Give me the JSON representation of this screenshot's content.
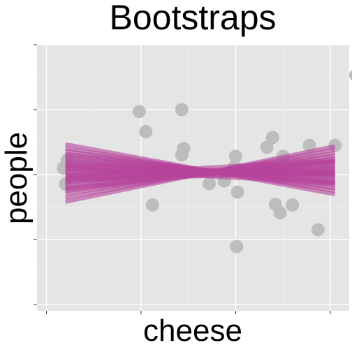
{
  "chart_data": {
    "type": "scatter",
    "title": "Bootstraps",
    "xlabel": "cheese",
    "ylabel": "people",
    "xlim": [
      -1.1,
      2.2
    ],
    "ylim": [
      -2.1,
      2.0
    ],
    "xticks": [
      -1.0,
      0.0,
      1.0,
      2.0
    ],
    "yticks": [
      -2.0,
      -1.0,
      0.0,
      1.0,
      2.0
    ],
    "tick_labels_visible": false,
    "grid": true,
    "legend": "none",
    "colors": {
      "panel_background": "#e5e5e5",
      "grid_major": "#ffffff",
      "grid_minor": "#f1f1f1",
      "points": "#bdbdbd",
      "bootstrap_lines": "#b5459b"
    },
    "points": [
      {
        "x": -0.8,
        "y": -0.15
      },
      {
        "x": -0.82,
        "y": 0.1
      },
      {
        "x": -0.78,
        "y": 0.22
      },
      {
        "x": -0.02,
        "y": 0.97
      },
      {
        "x": 0.05,
        "y": 0.66
      },
      {
        "x": 0.43,
        "y": 1.0
      },
      {
        "x": 0.45,
        "y": 0.4
      },
      {
        "x": 0.43,
        "y": 0.3
      },
      {
        "x": 0.12,
        "y": -0.47
      },
      {
        "x": 0.72,
        "y": -0.14
      },
      {
        "x": 0.88,
        "y": -0.1
      },
      {
        "x": 0.99,
        "y": 0.12
      },
      {
        "x": 1.0,
        "y": 0.28
      },
      {
        "x": 1.02,
        "y": -0.27
      },
      {
        "x": 1.01,
        "y": -1.11
      },
      {
        "x": 1.33,
        "y": 0.42
      },
      {
        "x": 1.39,
        "y": 0.57
      },
      {
        "x": 1.42,
        "y": -0.46
      },
      {
        "x": 1.47,
        "y": -0.59
      },
      {
        "x": 1.5,
        "y": 0.28
      },
      {
        "x": 1.6,
        "y": -0.47
      },
      {
        "x": 1.78,
        "y": 0.45
      },
      {
        "x": 1.87,
        "y": -0.85
      },
      {
        "x": 1.95,
        "y": 0.05
      },
      {
        "x": 2.05,
        "y": 0.45
      },
      {
        "x": 2.27,
        "y": 1.53
      }
    ],
    "bootstrap_fits": [
      {
        "slope": 0.3,
        "intercept": -0.18
      },
      {
        "slope": 0.26,
        "intercept": -0.15
      },
      {
        "slope": 0.22,
        "intercept": -0.12
      },
      {
        "slope": 0.19,
        "intercept": -0.1
      },
      {
        "slope": 0.16,
        "intercept": -0.08
      },
      {
        "slope": 0.13,
        "intercept": -0.06
      },
      {
        "slope": 0.11,
        "intercept": -0.04
      },
      {
        "slope": 0.09,
        "intercept": -0.03
      },
      {
        "slope": 0.07,
        "intercept": -0.01
      },
      {
        "slope": 0.05,
        "intercept": 0.0
      },
      {
        "slope": 0.03,
        "intercept": 0.02
      },
      {
        "slope": 0.01,
        "intercept": 0.04
      },
      {
        "slope": -0.01,
        "intercept": 0.05
      },
      {
        "slope": -0.03,
        "intercept": 0.07
      },
      {
        "slope": -0.05,
        "intercept": 0.09
      },
      {
        "slope": -0.07,
        "intercept": 0.11
      },
      {
        "slope": -0.09,
        "intercept": 0.12
      },
      {
        "slope": -0.11,
        "intercept": 0.13
      },
      {
        "slope": -0.13,
        "intercept": 0.15
      },
      {
        "slope": -0.15,
        "intercept": 0.17
      },
      {
        "slope": -0.17,
        "intercept": 0.18
      },
      {
        "slope": -0.2,
        "intercept": 0.2
      },
      {
        "slope": -0.23,
        "intercept": 0.22
      },
      {
        "slope": -0.27,
        "intercept": 0.25
      },
      {
        "slope": 0.15,
        "intercept": -0.1
      },
      {
        "slope": 0.04,
        "intercept": -0.05
      },
      {
        "slope": -0.04,
        "intercept": 0.1
      },
      {
        "slope": 0.08,
        "intercept": 0.05
      },
      {
        "slope": -0.08,
        "intercept": 0.03
      },
      {
        "slope": 0.02,
        "intercept": -0.02
      }
    ],
    "fit_x_range": [
      -0.8,
      2.05
    ]
  }
}
